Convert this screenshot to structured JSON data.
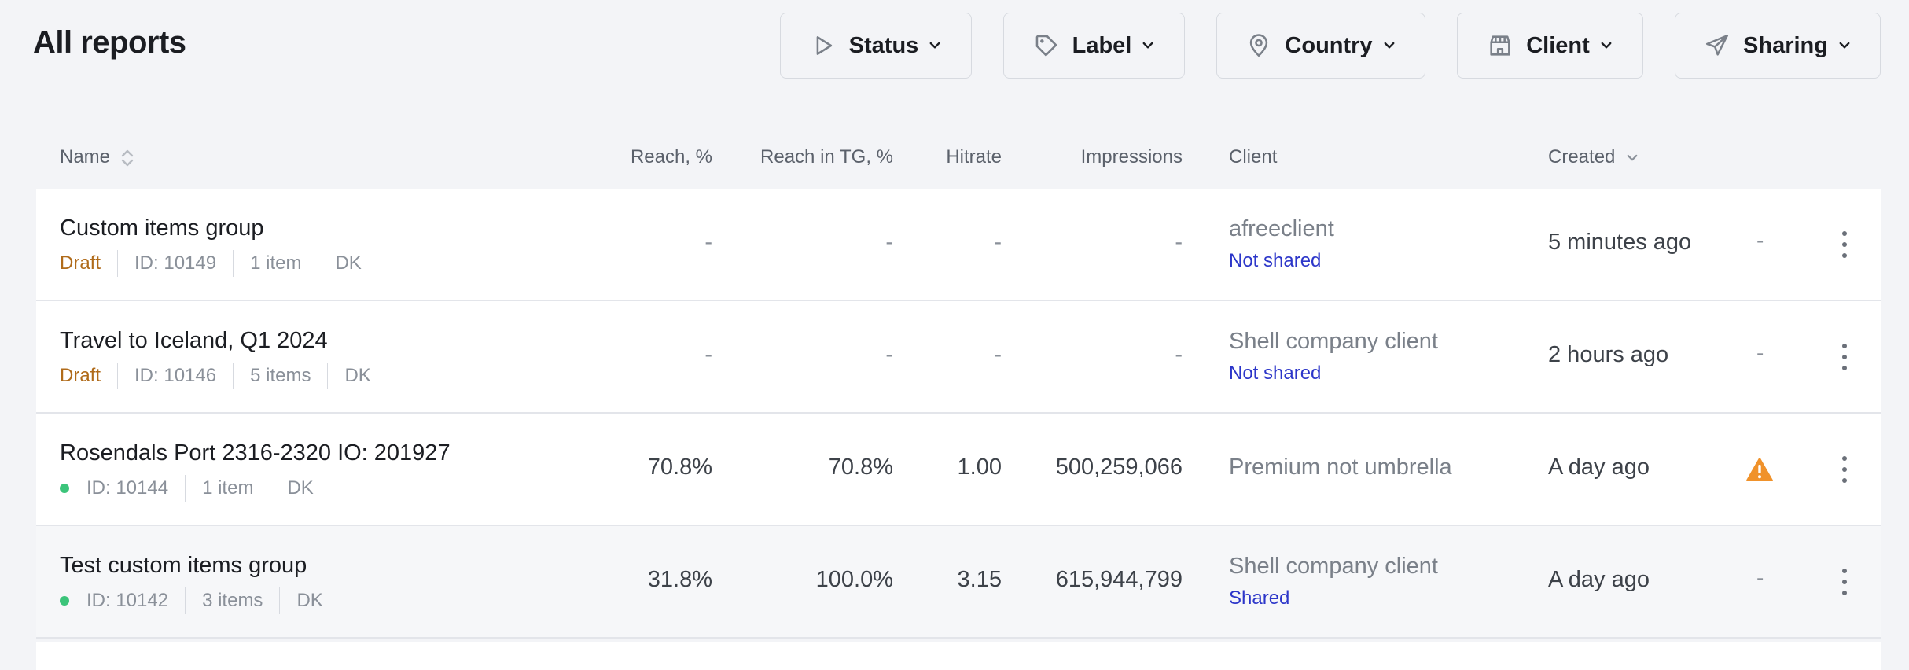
{
  "header": {
    "title": "All reports"
  },
  "filters": [
    {
      "label": "Status",
      "icon": "play-icon"
    },
    {
      "label": "Label",
      "icon": "tag-icon"
    },
    {
      "label": "Country",
      "icon": "map-pin-icon"
    },
    {
      "label": "Client",
      "icon": "store-icon"
    },
    {
      "label": "Sharing",
      "icon": "paper-plane-icon"
    }
  ],
  "columns": {
    "name": "Name",
    "reach": "Reach, %",
    "reach_tg": "Reach in TG, %",
    "hitrate": "Hitrate",
    "impressions": "Impressions",
    "client": "Client",
    "created": "Created"
  },
  "rows": [
    {
      "name": "Custom items group",
      "status": "Draft",
      "id": "ID: 10149",
      "items": "1 item",
      "country": "DK",
      "reach": "-",
      "reach_tg": "-",
      "hitrate": "-",
      "impressions": "-",
      "client": "afreeclient",
      "sharing": "Not shared",
      "created": "5 minutes ago",
      "extra": "-"
    },
    {
      "name": "Travel to Iceland, Q1 2024",
      "status": "Draft",
      "id": "ID: 10146",
      "items": "5 items",
      "country": "DK",
      "reach": "-",
      "reach_tg": "-",
      "hitrate": "-",
      "impressions": "-",
      "client": "Shell company client",
      "sharing": "Not shared",
      "created": "2 hours ago",
      "extra": "-"
    },
    {
      "name": "Rosendals Port 2316-2320 IO: 201927",
      "status": "",
      "id": "ID: 10144",
      "items": "1 item",
      "country": "DK",
      "reach": "70.8%",
      "reach_tg": "70.8%",
      "hitrate": "1.00",
      "impressions": "500,259,066",
      "client": "Premium not umbrella",
      "sharing": "",
      "created": "A day ago",
      "extra": ""
    },
    {
      "name": "Test custom items group",
      "status": "",
      "id": "ID: 10142",
      "items": "3 items",
      "country": "DK",
      "reach": "31.8%",
      "reach_tg": "100.0%",
      "hitrate": "3.15",
      "impressions": "615,944,799",
      "client": "Shell company client",
      "sharing": "Shared",
      "created": "A day ago",
      "extra": "-"
    }
  ],
  "colors": {
    "accent_link": "#2c36c9",
    "draft": "#b06b1a",
    "active_dot": "#3bc47a",
    "warning": "#f0922b"
  }
}
